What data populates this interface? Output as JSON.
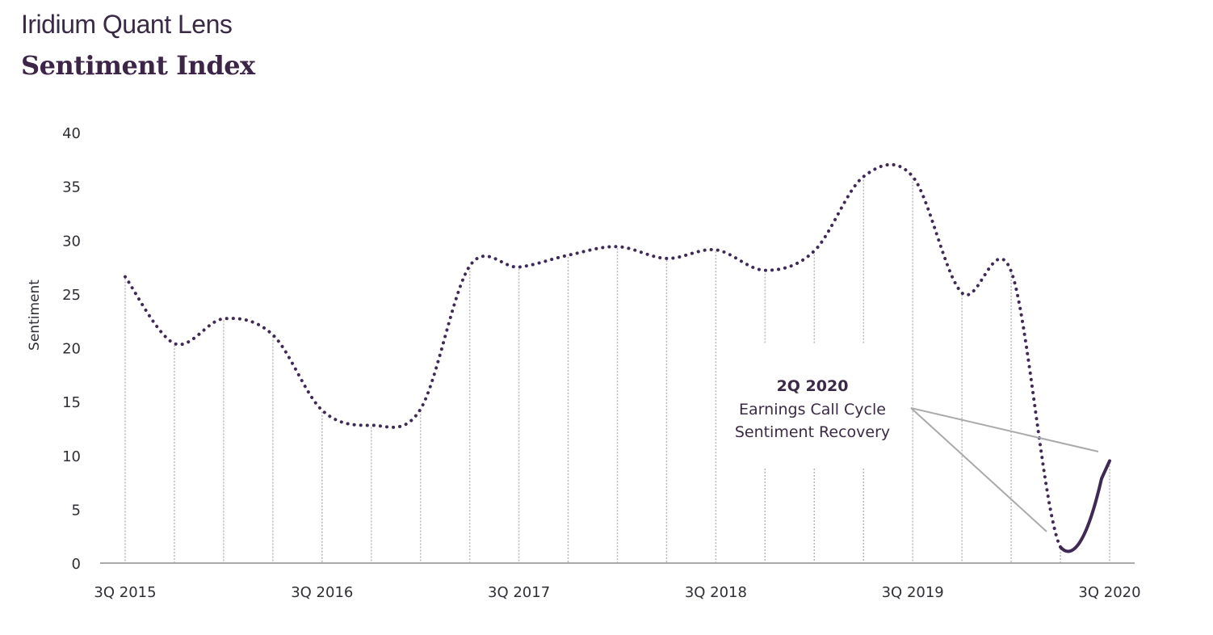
{
  "header": {
    "brand": "Iridium Quant Lens",
    "title": "Sentiment Index"
  },
  "colors": {
    "line": "#3f2a56",
    "axis": "#aaaaaa",
    "gridline": "#b8b8b8",
    "text": "#2f2f36",
    "title": "#3d2548"
  },
  "annotation": {
    "title": "2Q 2020",
    "line1": "Earnings Call Cycle",
    "line2": "Sentiment Recovery"
  },
  "chart_data": {
    "type": "line",
    "title": "Sentiment Index",
    "subtitle": "Iridium Quant Lens",
    "xlabel": "",
    "ylabel": "Sentiment",
    "ylim": [
      0,
      40
    ],
    "yticks": [
      0,
      5,
      10,
      15,
      20,
      25,
      30,
      35,
      40
    ],
    "xtick_labels": [
      "3Q 2015",
      "3Q 2016",
      "3Q 2017",
      "3Q 2018",
      "3Q 2019",
      "3Q 2020"
    ],
    "grid": "vertical dotted drop-lines at each quarter",
    "legend": "none",
    "categories": [
      "3Q 2015",
      "4Q 2015",
      "1Q 2016",
      "2Q 2016",
      "3Q 2016",
      "4Q 2016",
      "1Q 2017",
      "2Q 2017",
      "3Q 2017",
      "4Q 2017",
      "1Q 2018",
      "2Q 2018",
      "3Q 2018",
      "4Q 2018",
      "1Q 2019",
      "2Q 2019",
      "3Q 2019",
      "4Q 2019",
      "1Q 2020",
      "2Q 2020",
      "3Q 2020"
    ],
    "series": [
      {
        "name": "Sentiment",
        "values": [
          26.6,
          20.4,
          22.7,
          21.2,
          14.2,
          12.8,
          14.3,
          27.6,
          27.5,
          28.6,
          29.4,
          28.3,
          29.1,
          27.2,
          29.0,
          35.9,
          35.9,
          25.1,
          27.1,
          1.5,
          9.5
        ],
        "style": "dotted, solid from 2Q 2020 to 3Q 2020"
      }
    ],
    "annotations": [
      {
        "text": "2Q 2020 Earnings Call Cycle Sentiment Recovery",
        "points_to": [
          "2Q 2020",
          "3Q 2020"
        ]
      }
    ]
  }
}
